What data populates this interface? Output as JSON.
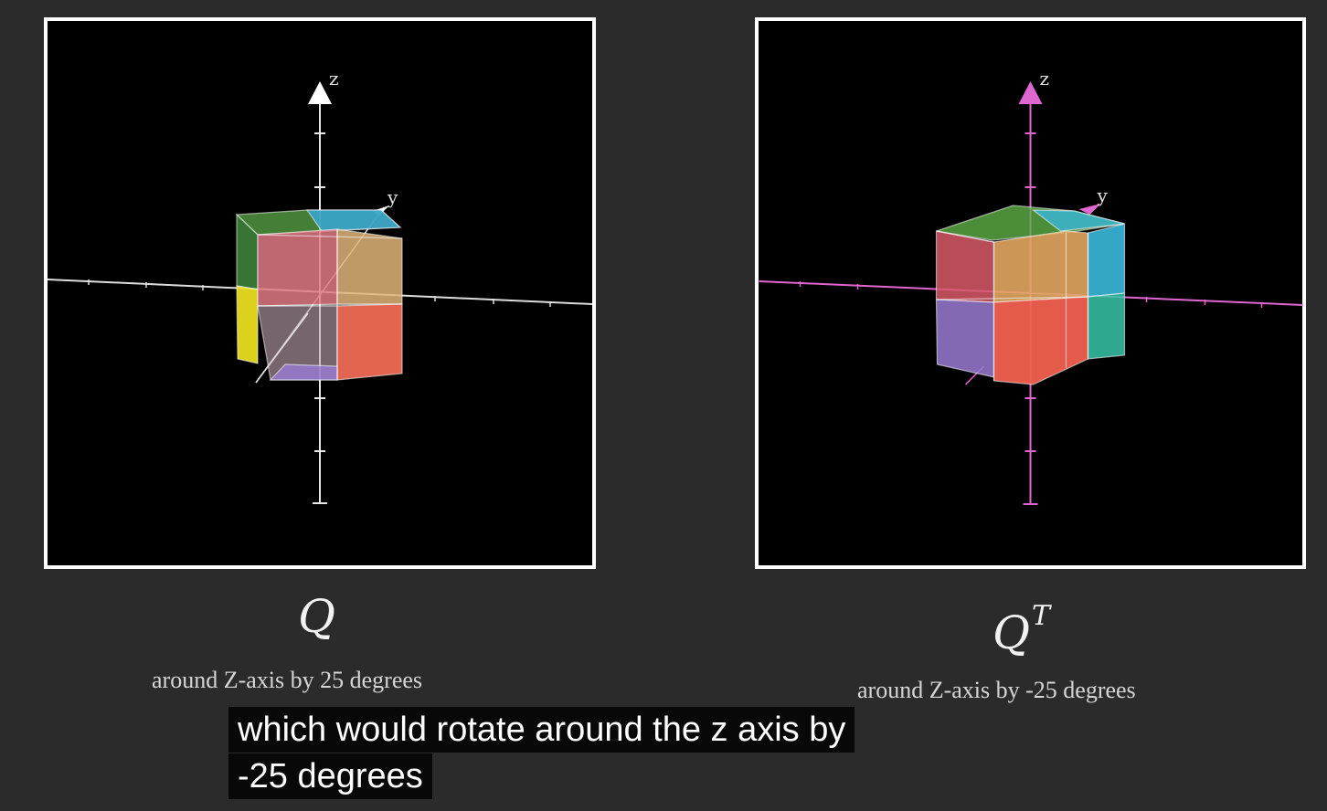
{
  "left_panel": {
    "axis_labels": {
      "z": "z",
      "y": "y"
    },
    "axis_color": "#ffffff",
    "math_label": "Q",
    "caption": "around Z-axis by 25 degrees"
  },
  "right_panel": {
    "axis_labels": {
      "z": "z",
      "y": "y"
    },
    "axis_color": "#e066d0",
    "math_label": "Q",
    "math_superscript": "T",
    "caption": "around Z-axis by -25 degrees"
  },
  "subtitles": {
    "line1": "which would rotate around the z axis by",
    "line2": "-25 degrees"
  },
  "colors": {
    "background": "#2b2b2b",
    "panel_background": "#000000",
    "panel_border": "#ffffff"
  }
}
